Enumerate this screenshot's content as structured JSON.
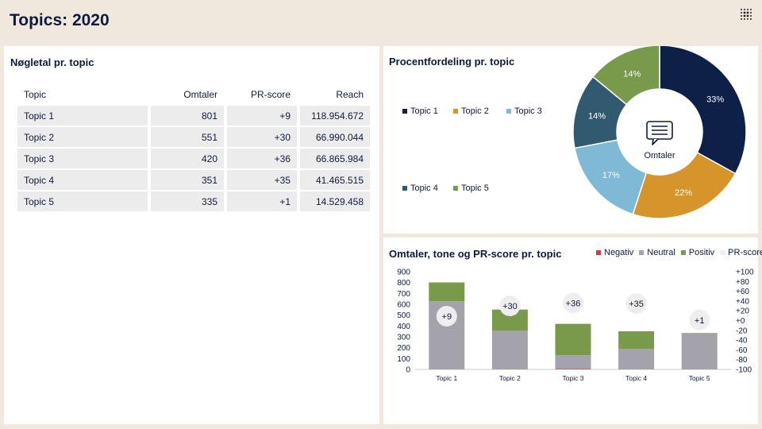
{
  "page": {
    "title": "Topics: 2020"
  },
  "kpi_table": {
    "title": "Nøgletal pr. topic",
    "headers": [
      "Topic",
      "Omtaler",
      "PR-score",
      "Reach"
    ],
    "rows": [
      [
        "Topic 1",
        "801",
        "+9",
        "118.954.672"
      ],
      [
        "Topic 2",
        "551",
        "+30",
        "66.990.044"
      ],
      [
        "Topic 3",
        "420",
        "+36",
        "66.865.984"
      ],
      [
        "Topic 4",
        "351",
        "+35",
        "41.465.515"
      ],
      [
        "Topic 5",
        "335",
        "+1",
        "14.529.458"
      ]
    ]
  },
  "colors": {
    "topic_1": "#0e1f48",
    "topic_2": "#d6952b",
    "topic_3": "#7eb9d6",
    "topic_4": "#31596f",
    "topic_5": "#7a9a4b",
    "negativ": "#d33a3a",
    "neutral": "#a4a2ab",
    "positiv": "#7a9a4b",
    "pr_score": "#eeeeee"
  },
  "chart_data": [
    {
      "type": "pie",
      "title": "Procentfordeling pr. topic",
      "center_label": "Omtaler",
      "center_icon": "speech-bubble-icon",
      "legend_placement": "left",
      "categories": [
        "Topic 1",
        "Topic 2",
        "Topic 3",
        "Topic 4",
        "Topic 5"
      ],
      "values": [
        33,
        22,
        17,
        14,
        14
      ],
      "labels": [
        "33%",
        "22%",
        "17%",
        "14%",
        "14%"
      ]
    },
    {
      "type": "bar",
      "stacked": true,
      "title": "Omtaler, tone og PR-score pr. topic",
      "legend_placement": "top-right",
      "categories": [
        "Topic 1",
        "Topic 2",
        "Topic 3",
        "Topic 4",
        "Topic 5"
      ],
      "series": [
        {
          "name": "Negativ",
          "values": [
            0,
            0,
            4,
            0,
            0
          ]
        },
        {
          "name": "Neutral",
          "values": [
            628,
            356,
            126,
            188,
            330
          ]
        },
        {
          "name": "Positiv",
          "values": [
            173,
            195,
            290,
            163,
            5
          ]
        }
      ],
      "pr_score": {
        "name": "PR-score",
        "values": [
          9,
          30,
          36,
          35,
          1
        ],
        "labels": [
          "+9",
          "+30",
          "+36",
          "+35",
          "+1"
        ]
      },
      "ylim": [
        0,
        900
      ],
      "y_ticks": [
        "900",
        "800",
        "700",
        "600",
        "500",
        "400",
        "300",
        "200",
        "100",
        "0"
      ],
      "y2lim": [
        -100,
        100
      ],
      "y2_ticks": [
        "+100",
        "+80",
        "+60",
        "+40",
        "+20",
        "+0",
        "-20",
        "-40",
        "-60",
        "-80",
        "-100"
      ]
    }
  ]
}
